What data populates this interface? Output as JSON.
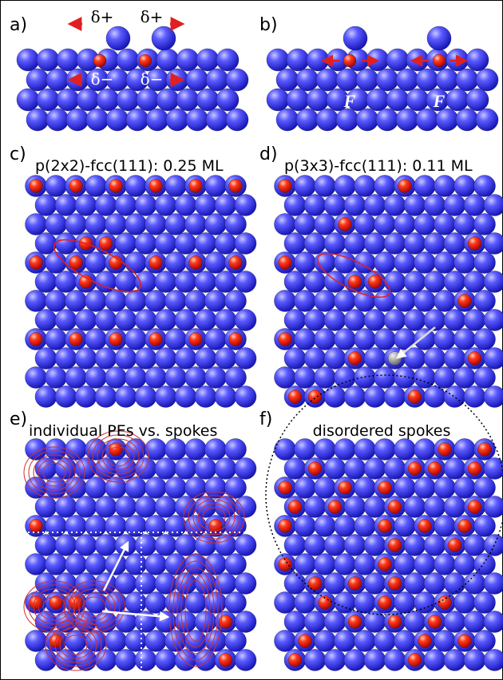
{
  "panels": [
    {
      "label": "a)",
      "annotations": [
        "δ+",
        "δ+",
        "δ−",
        "δ−"
      ]
    },
    {
      "label": "b)",
      "annotations": [
        "F",
        "F"
      ]
    },
    {
      "label": "c)",
      "title": "p(2x2)-fcc(111): 0.25 ML"
    },
    {
      "label": "d)",
      "title": "p(3x3)-fcc(111): 0.11 ML"
    },
    {
      "label": "e)",
      "title": "individual PEs vs. spokes"
    },
    {
      "label": "f)",
      "title": "disordered spokes"
    }
  ]
}
